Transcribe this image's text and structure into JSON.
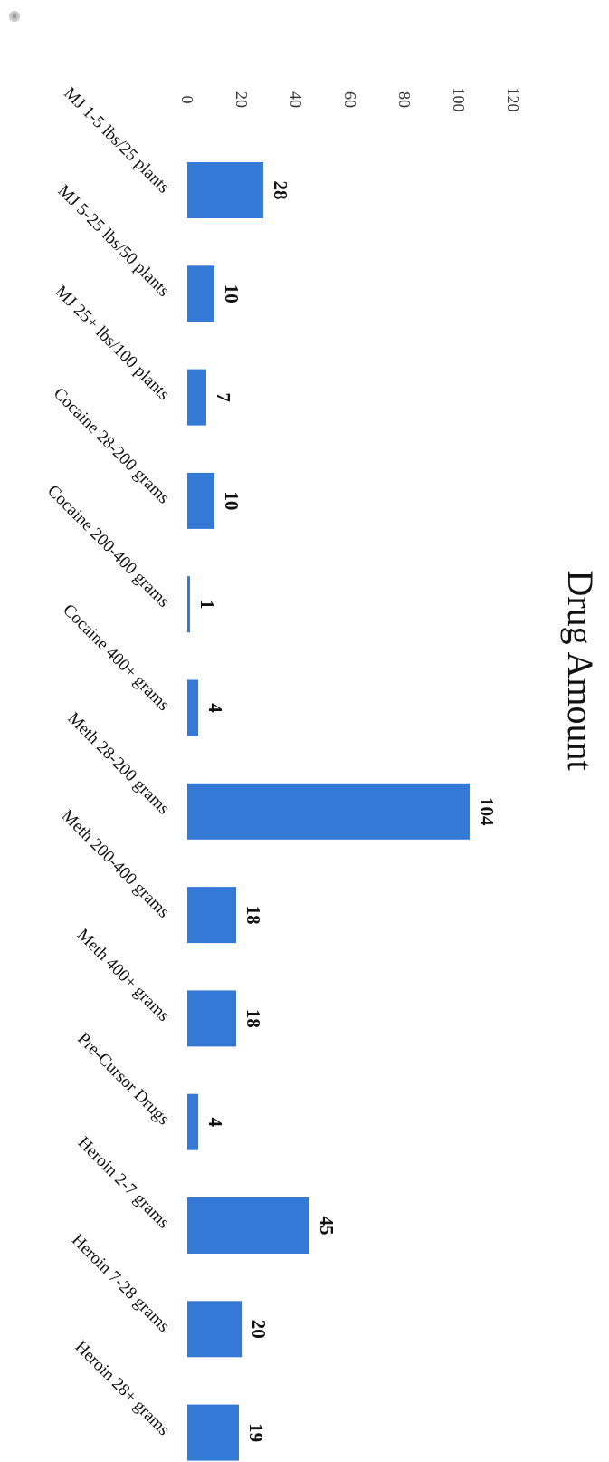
{
  "chart_data": {
    "type": "bar",
    "orientation": "rotated-90-clockwise",
    "title": "Drug Amount",
    "categories": [
      "MJ 1-5 lbs/25 plants",
      "MJ 5-25 lbs/50 plants",
      "MJ 25+ lbs/100 plants",
      "Cocaine 28-200 grams",
      "Cocaine 200-400 grams",
      "Cocaine 400+ grams",
      "Meth 28-200 grams",
      "Meth 200-400 grams",
      "Meth 400+ grams",
      "Pre-Cursor Drugs",
      "Heroin 2-7 grams",
      "Heroin 7-28 grams",
      "Heroin 28+ grams"
    ],
    "values": [
      28,
      10,
      7,
      10,
      1,
      4,
      104,
      18,
      18,
      4,
      45,
      20,
      19
    ],
    "value_labels": [
      "28",
      "10",
      "7",
      "10",
      "1",
      "4",
      "104",
      "18",
      "18",
      "4",
      "45",
      "20",
      "19"
    ],
    "ylim": [
      0,
      120
    ],
    "yticks": [
      0,
      20,
      40,
      60,
      80,
      100,
      120
    ],
    "ytick_labels": [
      "0",
      "20",
      "40",
      "60",
      "80",
      "100",
      "120"
    ],
    "xlabel": "",
    "ylabel": "",
    "grid": false,
    "legend": "none",
    "bar_color": "#3579d6"
  }
}
